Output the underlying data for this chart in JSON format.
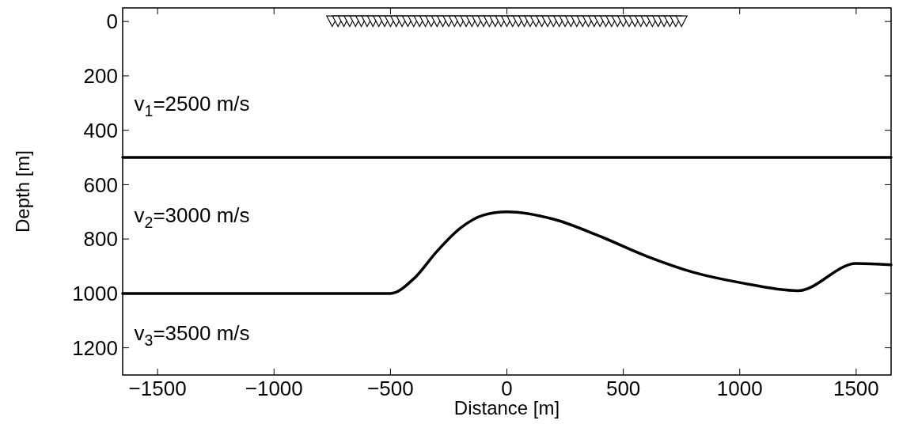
{
  "chart_data": {
    "type": "line",
    "xlabel": "Distance [m]",
    "ylabel": "Depth [m]",
    "xlim": [
      -1650,
      1650
    ],
    "ylim": [
      1300,
      -50
    ],
    "xticks": [
      {
        "value": -1500,
        "label": "−1500"
      },
      {
        "value": -1000,
        "label": "−1000"
      },
      {
        "value": -500,
        "label": "−500"
      },
      0,
      500,
      1000,
      1500
    ],
    "yticks": [
      0,
      200,
      400,
      600,
      800,
      1000,
      1200
    ],
    "grid": false,
    "annotations": [
      "v$_{1}$=2500 m/s",
      "v$_{2}$=3000 m/s",
      "v$_{3}$=3500 m/s"
    ],
    "series": [
      {
        "color": "#000000",
        "x": [
          -1650,
          1650
        ],
        "values": [
          500,
          500
        ]
      },
      {
        "color": "#000000",
        "x": [
          -1650,
          -500,
          -400,
          -300,
          -200,
          -100,
          0,
          200,
          400,
          600,
          800,
          1000,
          1250,
          1500,
          1650
        ],
        "values": [
          1000,
          1000,
          946,
          845,
          760,
          712,
          700,
          727,
          790,
          863,
          922,
          960,
          990,
          890,
          895
        ]
      },
      {
        "type": "scatter",
        "color": "#000000",
        "marker": "triangle",
        "x": [
          -750,
          -725,
          -700,
          -675,
          -650,
          -625,
          -600,
          -575,
          -550,
          -525,
          -500,
          -475,
          -450,
          -425,
          -400,
          -375,
          -350,
          -325,
          -300,
          -275,
          -250,
          -225,
          -200,
          -175,
          -150,
          -125,
          -100,
          -75,
          -50,
          -25,
          0,
          25,
          50,
          75,
          100,
          125,
          150,
          175,
          200,
          225,
          250,
          275,
          300,
          325,
          350,
          375,
          400,
          425,
          450,
          475,
          500,
          525,
          550,
          575,
          600,
          625,
          650,
          675,
          700,
          725,
          750
        ],
        "values": [
          0,
          0,
          0,
          0,
          0,
          0,
          0,
          0,
          0,
          0,
          0,
          0,
          0,
          0,
          0,
          0,
          0,
          0,
          0,
          0,
          0,
          0,
          0,
          0,
          0,
          0,
          0,
          0,
          0,
          0,
          0,
          0,
          0,
          0,
          0,
          0,
          0,
          0,
          0,
          0,
          0,
          0,
          0,
          0,
          0,
          0,
          0,
          0,
          0,
          0,
          0,
          0,
          0,
          0,
          0,
          0,
          0,
          0,
          0,
          0,
          0
        ]
      }
    ]
  }
}
